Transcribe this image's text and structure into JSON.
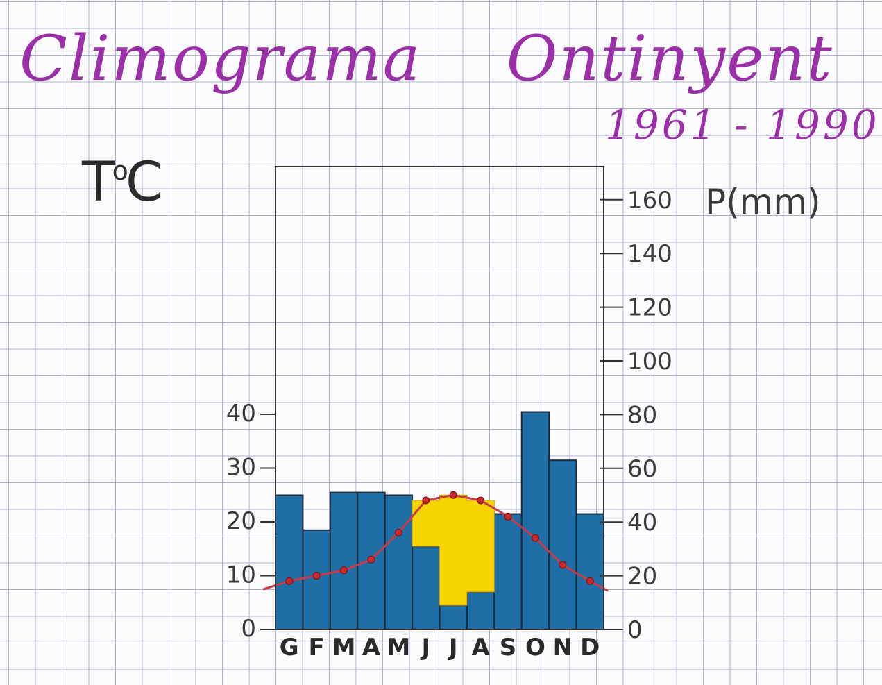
{
  "title": "Climograma",
  "place": "Ontinyent",
  "period": "1961 - 1990",
  "temp_unit_T": "T",
  "temp_unit_deg": "o",
  "temp_unit_C": "C",
  "precip_label": "P(mm)",
  "chart_data": {
    "type": "bar",
    "categories": [
      "G",
      "F",
      "M",
      "A",
      "M",
      "J",
      "J",
      "A",
      "S",
      "O",
      "N",
      "D"
    ],
    "series": [
      {
        "values": [
          50,
          37,
          51,
          51,
          50,
          31,
          9,
          14,
          43,
          81,
          63,
          43
        ],
        "color": "#1f6fa6"
      },
      {
        "values": [
          9,
          10,
          11,
          13,
          18,
          24,
          25,
          24,
          21,
          17,
          12,
          9
        ],
        "color": "#c72a2a"
      }
    ],
    "temperature_axis": {
      "ticks": [
        0,
        10,
        20,
        30,
        40
      ],
      "range": [
        0,
        80
      ]
    },
    "precipitation_axis": {
      "ticks": [
        0,
        20,
        40,
        60,
        80,
        100,
        120,
        140,
        160
      ],
      "range": [
        0,
        160
      ]
    },
    "arid_period_fill": "#f5d400",
    "grid": false,
    "legend": "none"
  }
}
